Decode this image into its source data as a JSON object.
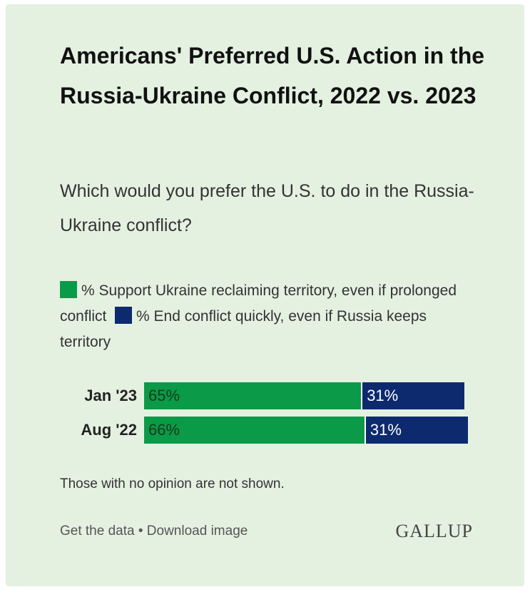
{
  "chart_data": {
    "type": "bar",
    "orientation": "horizontal-stacked",
    "title": "Americans' Preferred U.S. Action in the Russia-Ukraine Conflict, 2022 vs. 2023",
    "subtitle": "Which would you prefer the U.S. to do in the Russia-Ukraine conflict?",
    "categories": [
      "Jan '23",
      "Aug '22"
    ],
    "series": [
      {
        "name": "% Support Ukraine reclaiming territory, even if prolonged conflict",
        "values": [
          65,
          66
        ],
        "labels": [
          "65%",
          "66%"
        ],
        "color": "#0b9a48"
      },
      {
        "name": "% End conflict quickly, even if Russia keeps territory",
        "values": [
          31,
          31
        ],
        "labels": [
          "31%",
          "31%"
        ],
        "color": "#0d2a6e"
      }
    ],
    "xlim": [
      0,
      100
    ],
    "grid": false,
    "legend": "top",
    "footnote": "Those with no opinion are not shown."
  },
  "footer": {
    "get_data": "Get the data",
    "separator": "•",
    "download": "Download image",
    "logo": "GALLUP"
  }
}
